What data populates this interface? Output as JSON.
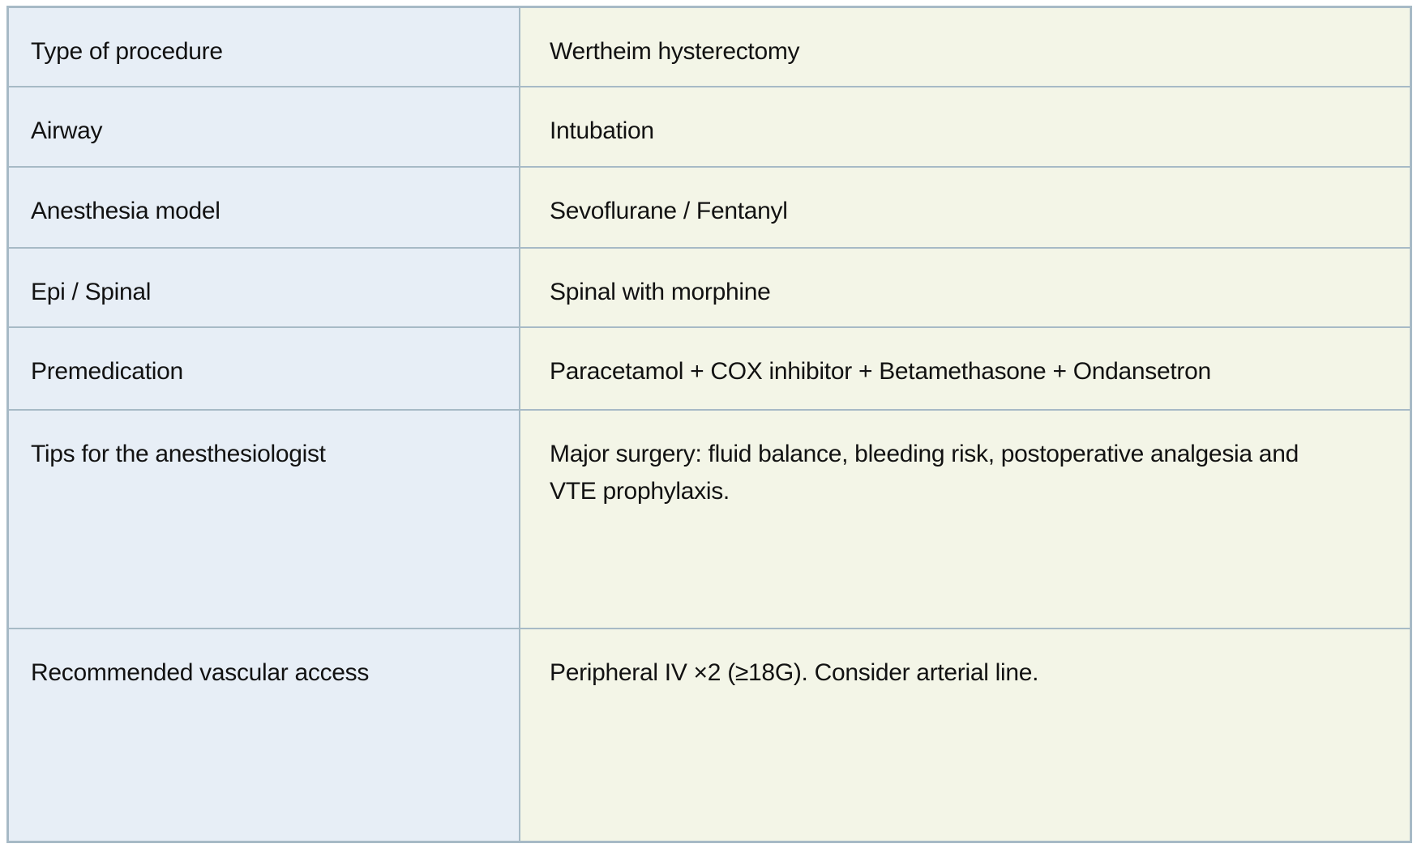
{
  "table": {
    "rows": [
      {
        "label": "Type of procedure",
        "value": "Wertheim hysterectomy"
      },
      {
        "label": "Airway",
        "value": "Intubation"
      },
      {
        "label": "Anesthesia model",
        "value": "Sevoflurane / Fentanyl"
      },
      {
        "label": "Epi / Spinal",
        "value": "Spinal with morphine"
      },
      {
        "label": "Premedication",
        "value": "Paracetamol + COX inhibitor + Betamethasone + Ondansetron"
      },
      {
        "label": "Tips for the anesthesiologist",
        "value": "Major surgery: fluid balance, bleeding risk, postoperative analgesia and VTE prophylaxis."
      },
      {
        "label": "Recommended vascular access",
        "value": "Peripheral IV ×2 (≥18G). Consider arterial line."
      }
    ]
  },
  "colors": {
    "page_bg": "#ffffff",
    "border": "#a7bac6",
    "label_column_bg": "#e7eef6",
    "value_column_bg": "#f3f5e7",
    "text": "#121212"
  }
}
